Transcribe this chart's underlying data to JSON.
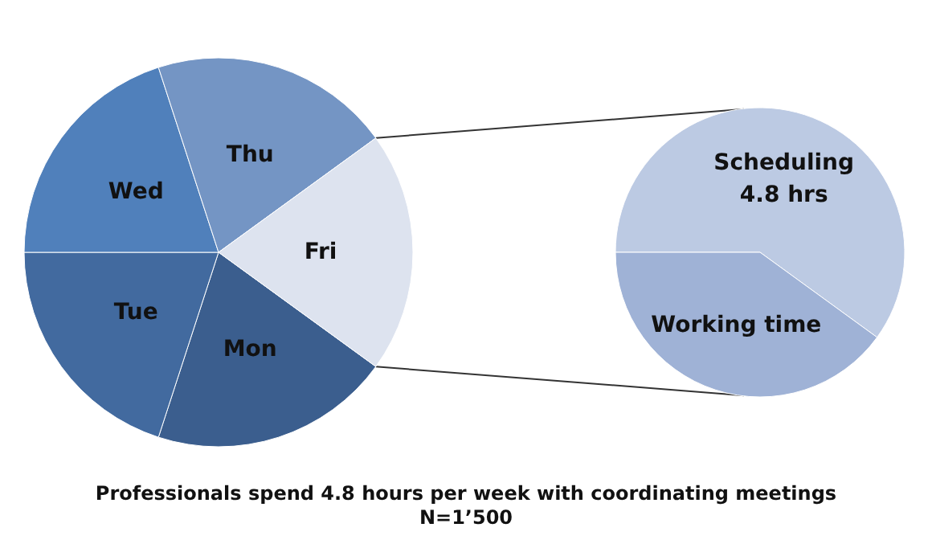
{
  "chart_data": [
    {
      "type": "pie",
      "title": "Professionals spend 4.8 hours per week with coordinating meetings",
      "subtitle": "N=1’500",
      "categories": [
        "Mon",
        "Tue",
        "Wed",
        "Thu",
        "Fri"
      ],
      "values": [
        20,
        20,
        20,
        20,
        20
      ],
      "colors": [
        "#3b5e8e",
        "#426a9f",
        "#5080bb",
        "#7495c4",
        "#dde3ef"
      ]
    },
    {
      "type": "pie",
      "categories": [
        "Scheduling\n4.8 hrs",
        "Working time"
      ],
      "values": [
        60,
        40
      ],
      "colors": [
        "#bccae3",
        "#9fb2d6"
      ]
    }
  ]
}
